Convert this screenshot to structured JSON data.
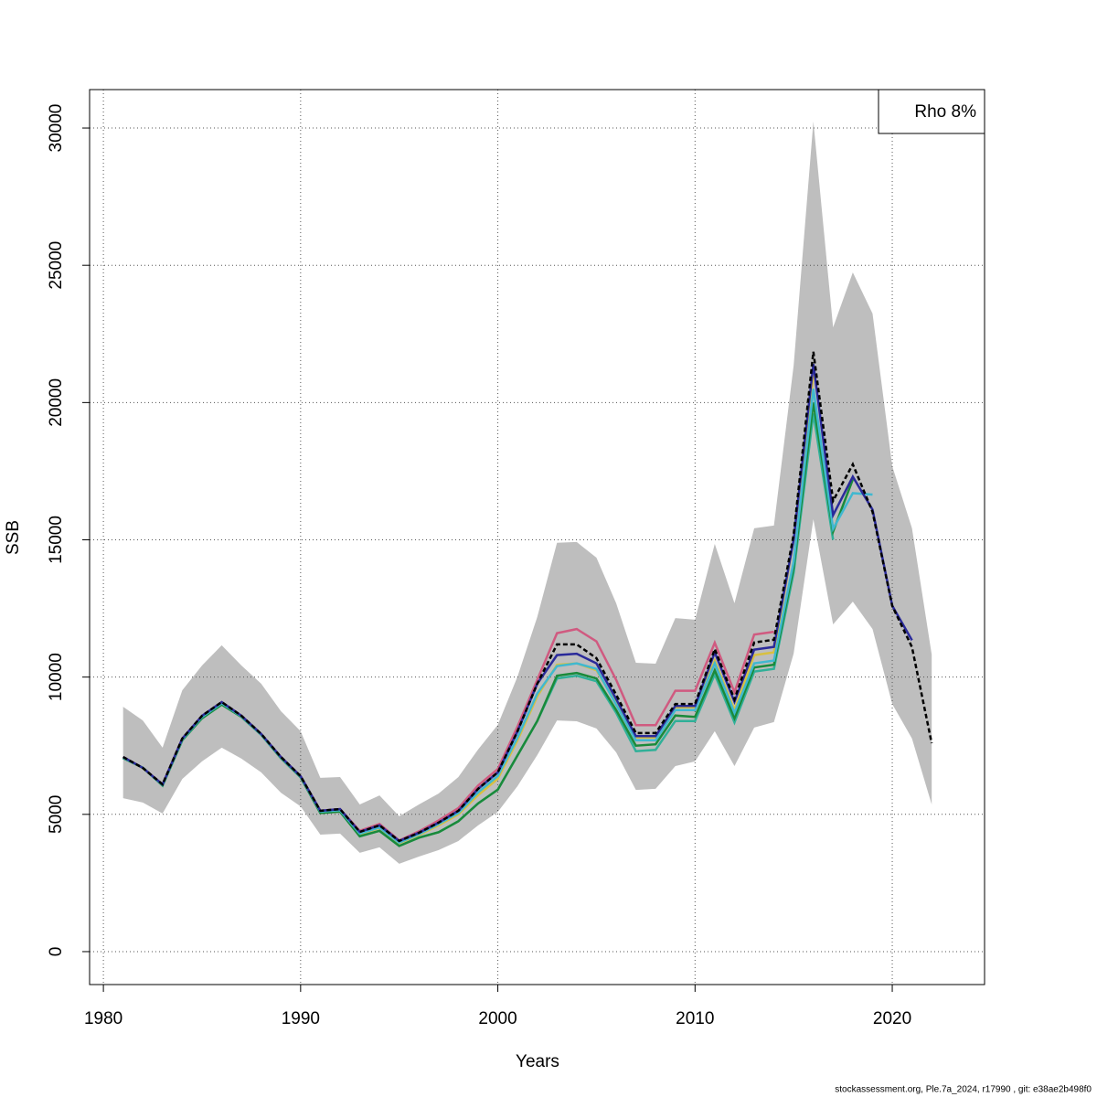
{
  "chart_data": {
    "type": "line",
    "x_label": "Years",
    "y_label": "SSB",
    "annotation": "Rho 8%",
    "footer": "stockassessment.org, Ple.7a_2024, r17990 , git: e38ae2b498f0",
    "xlim": [
      1979.3,
      2024.68
    ],
    "ylim": [
      -1200,
      31400
    ],
    "xticks": [
      1980,
      1990,
      2000,
      2010,
      2020
    ],
    "yticks": [
      0,
      5000,
      10000,
      15000,
      20000,
      25000,
      30000
    ],
    "grid": true,
    "x": [
      1981,
      1982,
      1983,
      1984,
      1985,
      1986,
      1987,
      1988,
      1989,
      1990,
      1991,
      1992,
      1993,
      1994,
      1995,
      1996,
      1997,
      1998,
      1999,
      2000,
      2001,
      2002,
      2003,
      2004,
      2005,
      2006,
      2007,
      2008,
      2009,
      2010,
      2011,
      2012,
      2013,
      2014,
      2015,
      2016,
      2017,
      2018,
      2019,
      2020,
      2021,
      2022
    ],
    "band": {
      "color": "#bebebe",
      "upper": [
        8920,
        8420,
        7430,
        9520,
        10420,
        11160,
        10420,
        9760,
        8760,
        8030,
        6330,
        6360,
        5360,
        5690,
        4930,
        5360,
        5760,
        6360,
        7360,
        8260,
        10020,
        12190,
        14890,
        14920,
        14350,
        12690,
        10520,
        10490,
        12150,
        12090,
        14850,
        12690,
        15420,
        15520,
        21350,
        30240,
        22740,
        24740,
        23240,
        17680,
        15420,
        10820
      ],
      "lower": [
        5590,
        5430,
        5030,
        6290,
        6930,
        7430,
        7030,
        6530,
        5790,
        5290,
        4260,
        4300,
        3600,
        3800,
        3200,
        3460,
        3700,
        4030,
        4600,
        5090,
        6030,
        7160,
        8420,
        8390,
        8130,
        7260,
        5890,
        5930,
        6760,
        6930,
        8030,
        6760,
        8160,
        8360,
        10860,
        15750,
        11920,
        12750,
        11750,
        9020,
        7760,
        5360
      ]
    },
    "series": [
      {
        "color": "#d05a80",
        "values": [
          7090,
          6690,
          6090,
          7760,
          8590,
          9090,
          8590,
          7930,
          7090,
          6390,
          5130,
          5190,
          4400,
          4650,
          4050,
          4380,
          4780,
          5230,
          6050,
          6650,
          8200,
          9900,
          11600,
          11750,
          11300,
          9900,
          8250,
          8250,
          9500,
          9500,
          11250,
          9450,
          11550,
          11650,
          null,
          null,
          null,
          null,
          null,
          null,
          null,
          null
        ]
      },
      {
        "color": "#d8c040",
        "values": [
          7070,
          6680,
          6070,
          7730,
          8560,
          9050,
          8570,
          7910,
          7070,
          6370,
          5090,
          5150,
          4280,
          4500,
          3950,
          4250,
          4600,
          5000,
          5700,
          6300,
          7700,
          9300,
          10450,
          10500,
          10250,
          9050,
          7800,
          7800,
          8900,
          8900,
          10600,
          8800,
          10800,
          10900,
          15000,
          21000,
          null,
          null,
          null,
          null,
          null,
          null
        ]
      },
      {
        "color": "#30b098",
        "values": [
          7050,
          6700,
          6050,
          7700,
          8500,
          9000,
          8550,
          7900,
          7050,
          6350,
          5050,
          5100,
          4200,
          4400,
          3850,
          4150,
          4350,
          4750,
          5400,
          5900,
          7150,
          8400,
          9950,
          10050,
          9850,
          8700,
          7300,
          7350,
          8400,
          8400,
          10100,
          8350,
          10200,
          10300,
          13800,
          19600,
          15000,
          null,
          null,
          null,
          null,
          null
        ]
      },
      {
        "color": "#1a8a3a",
        "values": [
          7050,
          6700,
          6050,
          7700,
          8500,
          9000,
          8550,
          7900,
          7050,
          6350,
          5050,
          5100,
          4200,
          4400,
          3850,
          4150,
          4350,
          4750,
          5400,
          5900,
          7150,
          8400,
          10050,
          10150,
          9950,
          8800,
          7500,
          7550,
          8600,
          8550,
          10250,
          8500,
          10350,
          10450,
          14000,
          20000,
          15300,
          17200,
          null,
          null,
          null,
          null
        ]
      },
      {
        "color": "#40b8d0",
        "values": [
          7070,
          6690,
          6070,
          7730,
          8550,
          9050,
          8570,
          7910,
          7070,
          6370,
          5100,
          5150,
          4300,
          4520,
          3970,
          4280,
          4650,
          5050,
          5800,
          6400,
          7800,
          9400,
          10400,
          10500,
          10300,
          9000,
          7700,
          7700,
          8800,
          8800,
          10500,
          8700,
          10500,
          10600,
          14200,
          20500,
          15400,
          16700,
          16650,
          null,
          null,
          null
        ]
      },
      {
        "color": "#2a2a9a",
        "values": [
          7090,
          6690,
          6090,
          7760,
          8590,
          9090,
          8590,
          7930,
          7090,
          6390,
          5130,
          5190,
          4360,
          4600,
          4030,
          4330,
          4700,
          5130,
          5930,
          6530,
          8030,
          9760,
          10800,
          10850,
          10500,
          9200,
          7850,
          7850,
          8950,
          8950,
          10900,
          9100,
          11000,
          11100,
          15000,
          21400,
          15900,
          17300,
          16100,
          12600,
          11340,
          null
        ]
      },
      {
        "color": "#000000",
        "linestyle": "dashed",
        "values": [
          7090,
          6690,
          6090,
          7760,
          8590,
          9090,
          8590,
          7930,
          7090,
          6390,
          5130,
          5190,
          4360,
          4600,
          4030,
          4330,
          4700,
          5130,
          5930,
          6530,
          8030,
          9760,
          11190,
          11190,
          10690,
          9360,
          7960,
          7960,
          9020,
          9020,
          11020,
          9190,
          11260,
          11360,
          15190,
          21850,
          16420,
          17750,
          16020,
          12590,
          11090,
          7590
        ]
      }
    ]
  }
}
